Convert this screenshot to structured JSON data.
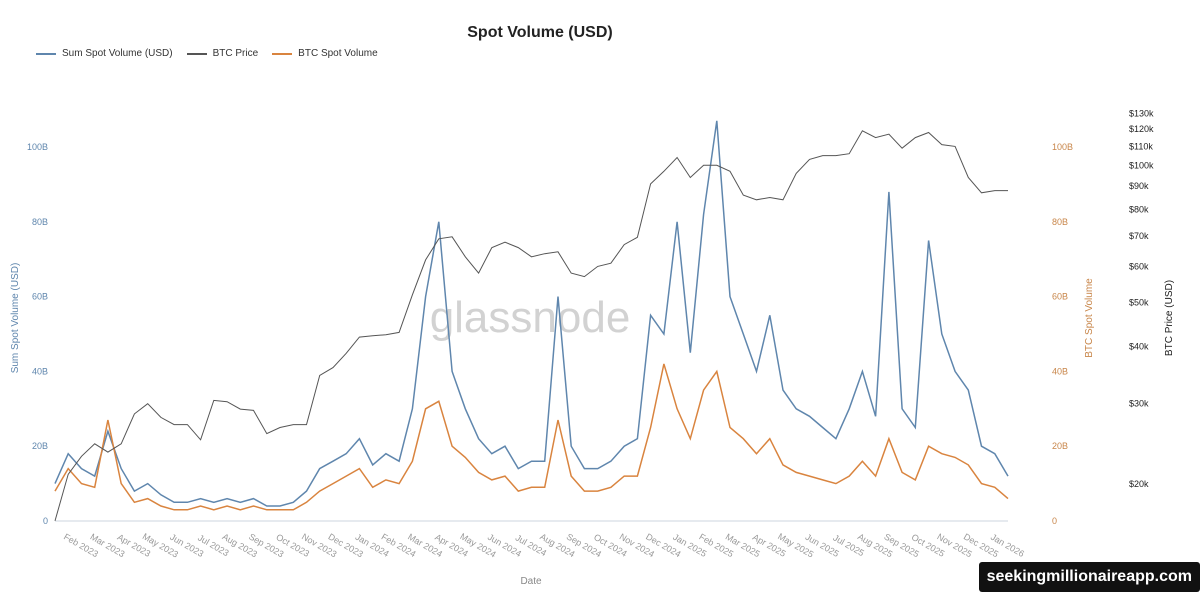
{
  "chart_data": {
    "type": "line",
    "title": "Spot Volume (USD)",
    "xlabel": "Date",
    "ylabel_left": "Sum Spot Volume (USD)",
    "ylabel_right": "BTC Spot Volume",
    "ylabel_price": "BTC Price (USD)",
    "legend_position": "top-left",
    "grid": false,
    "watermark": "glassnode",
    "colors": {
      "sum": "#5f86ad",
      "price": "#555555",
      "btc_volume": "#d9843f"
    },
    "x_tick_labels": [
      "Feb 2023",
      "Mar 2023",
      "Apr 2023",
      "May 2023",
      "Jun 2023",
      "Jul 2023",
      "Aug 2023",
      "Sep 2023",
      "Oct 2023",
      "Nov 2023",
      "Dec 2023",
      "Jan 2024",
      "Feb 2024",
      "Mar 2024",
      "Apr 2024",
      "May 2024",
      "Jun 2024",
      "Jul 2024",
      "Aug 2024",
      "Sep 2024",
      "Oct 2024",
      "Nov 2024",
      "Dec 2024",
      "Jan 2025",
      "Feb 2025",
      "Mar 2025",
      "Apr 2025",
      "May 2025",
      "Jun 2025",
      "Jul 2025",
      "Aug 2025",
      "Sep 2025",
      "Oct 2025",
      "Nov 2025",
      "Dec 2025",
      "Jan 2026"
    ],
    "y_left_ticks": [
      "0",
      "20B",
      "40B",
      "60B",
      "80B",
      "100B"
    ],
    "y_right_ticks": [
      "0",
      "20B",
      "40B",
      "60B",
      "80B",
      "100B"
    ],
    "y_price_ticks": [
      "$20k",
      "$30k",
      "$40k",
      "$50k",
      "$60k",
      "$70k",
      "$80k",
      "$90k",
      "$100k",
      "$110k",
      "$120k",
      "$130k"
    ],
    "y_volume_unit": "B",
    "price_scale": "log",
    "x_range": [
      "2023-01-01",
      "2026-01-01"
    ],
    "x_step": "half-month",
    "series": [
      {
        "name": "Sum Spot Volume (USD)",
        "axis": "left",
        "values": [
          10,
          18,
          14,
          12,
          24,
          14,
          8,
          10,
          7,
          5,
          5,
          6,
          5,
          6,
          5,
          6,
          4,
          4,
          5,
          8,
          14,
          16,
          18,
          22,
          15,
          18,
          16,
          30,
          60,
          80,
          40,
          30,
          22,
          18,
          20,
          14,
          16,
          16,
          60,
          20,
          14,
          14,
          16,
          20,
          22,
          55,
          50,
          80,
          45,
          82,
          107,
          60,
          50,
          40,
          55,
          35,
          30,
          28,
          25,
          22,
          30,
          40,
          28,
          88,
          30,
          25,
          75,
          50,
          40,
          35,
          20,
          18,
          12
        ]
      },
      {
        "name": "BTC Price",
        "axis": "price",
        "values": [
          16600,
          21000,
          23000,
          24500,
          23500,
          24500,
          28500,
          30000,
          28000,
          27000,
          27000,
          25000,
          30500,
          30300,
          29200,
          29000,
          25800,
          26600,
          27000,
          27000,
          34600,
          36000,
          38700,
          42000,
          42300,
          42500,
          43000,
          52000,
          62000,
          69000,
          69700,
          63000,
          58000,
          66000,
          67800,
          66000,
          63000,
          64000,
          64600,
          58000,
          57000,
          60000,
          61000,
          67000,
          69500,
          91000,
          97000,
          104000,
          94000,
          100000,
          100000,
          97000,
          86000,
          84000,
          85000,
          84000,
          96000,
          103000,
          105000,
          105000,
          106000,
          119000,
          115000,
          117000,
          109000,
          115000,
          118000,
          111000,
          110000,
          94000,
          87000,
          88000,
          88000
        ]
      },
      {
        "name": "BTC Spot Volume",
        "axis": "right",
        "values": [
          8,
          14,
          10,
          9,
          27,
          10,
          5,
          6,
          4,
          3,
          3,
          4,
          3,
          4,
          3,
          4,
          3,
          3,
          3,
          5,
          8,
          10,
          12,
          14,
          9,
          11,
          10,
          16,
          30,
          32,
          20,
          17,
          13,
          11,
          12,
          8,
          9,
          9,
          27,
          12,
          8,
          8,
          9,
          12,
          12,
          25,
          42,
          30,
          22,
          35,
          40,
          25,
          22,
          18,
          22,
          15,
          13,
          12,
          11,
          10,
          12,
          16,
          12,
          22,
          13,
          11,
          20,
          18,
          17,
          15,
          10,
          9,
          6
        ]
      }
    ]
  },
  "footer": {
    "badge": "seekingmillionaireapp.com"
  }
}
